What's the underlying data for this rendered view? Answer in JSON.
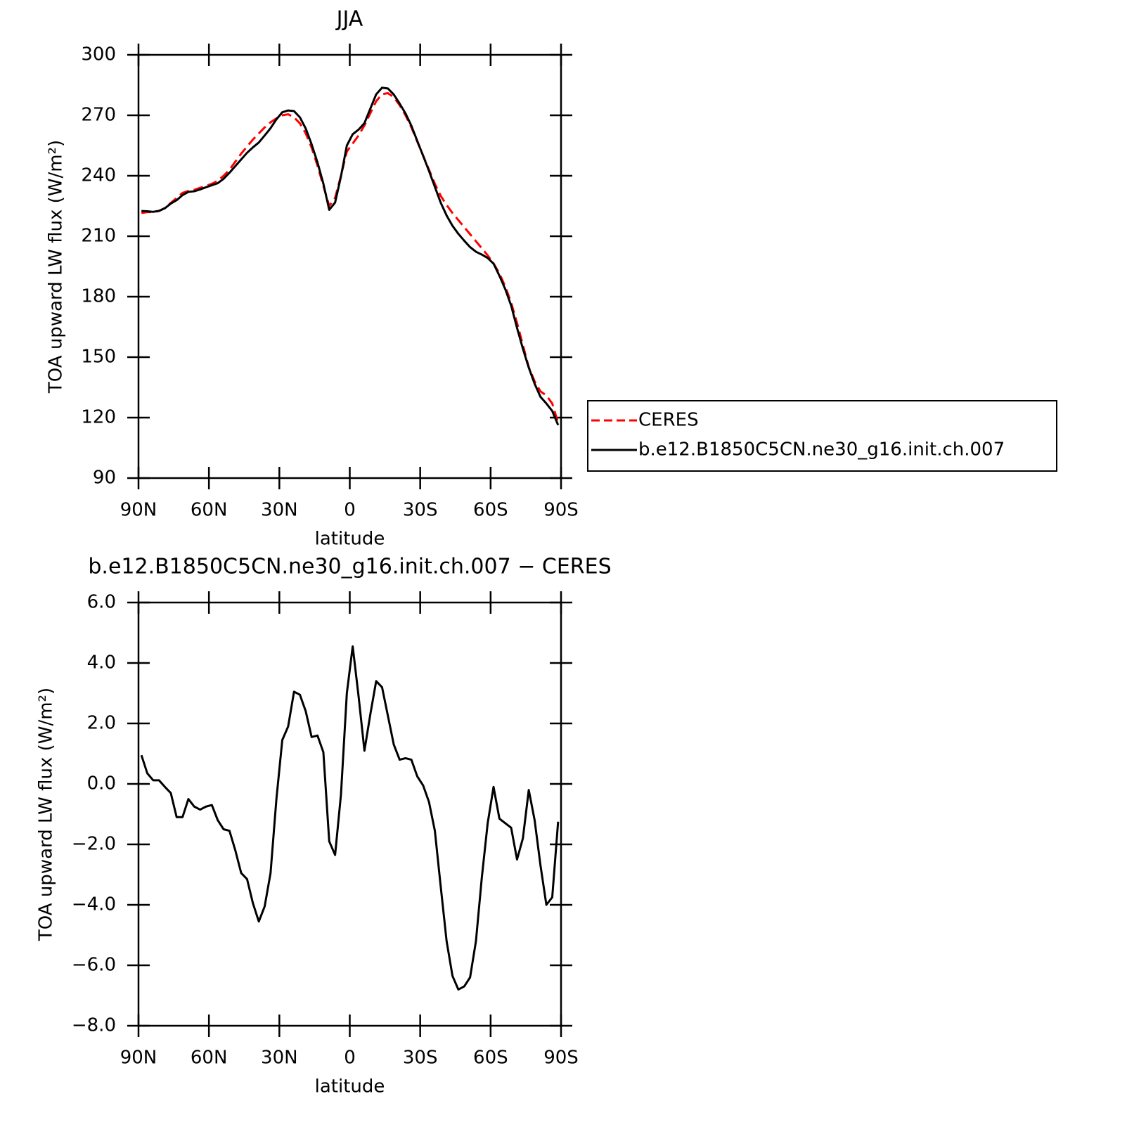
{
  "chart_data": [
    {
      "type": "line",
      "title": "JJA",
      "xlabel": "latitude",
      "ylabel": "TOA upward LW flux (W/m²)",
      "x": [
        88.75,
        86.25,
        83.75,
        81.25,
        78.75,
        76.25,
        73.75,
        71.25,
        68.75,
        66.25,
        63.75,
        61.25,
        58.75,
        56.25,
        53.75,
        51.25,
        48.75,
        46.25,
        43.75,
        41.25,
        38.75,
        36.25,
        33.75,
        31.25,
        28.75,
        26.25,
        23.75,
        21.25,
        18.75,
        16.25,
        13.75,
        11.25,
        8.75,
        6.25,
        3.75,
        1.25,
        -1.25,
        -3.75,
        -6.25,
        -8.75,
        -11.25,
        -13.75,
        -16.25,
        -18.75,
        -21.25,
        -23.75,
        -26.25,
        -28.75,
        -31.25,
        -33.75,
        -36.25,
        -38.75,
        -41.25,
        -43.75,
        -46.25,
        -48.75,
        -51.25,
        -53.75,
        -56.25,
        -58.75,
        -61.25,
        -63.75,
        -66.25,
        -68.75,
        -71.25,
        -73.75,
        -76.25,
        -78.75,
        -81.25,
        -83.75,
        -86.25,
        -88.75
      ],
      "series": [
        {
          "name": "CERES",
          "color": "#ff0000",
          "dashed": true,
          "values": [
            221.5,
            222,
            222,
            222.5,
            224,
            226.5,
            229,
            231.5,
            232.5,
            233,
            234,
            235,
            236,
            237.5,
            240,
            243,
            247,
            251,
            254.5,
            258,
            261,
            264,
            266.5,
            268.5,
            270,
            270.5,
            269,
            266,
            261,
            254,
            245,
            235,
            225,
            229,
            240,
            252,
            256,
            260,
            265,
            271,
            277,
            280.5,
            281,
            279,
            275,
            270,
            264,
            257,
            250,
            243,
            236,
            230,
            225.5,
            221.5,
            218,
            214.5,
            211,
            207.5,
            204,
            200.5,
            196.5,
            191.5,
            185,
            177,
            167,
            156,
            145,
            138,
            133,
            131,
            127,
            117.5
          ]
        },
        {
          "name": "b.e12.B1850C5CN.ne30_g16.init.ch.007",
          "color": "#000000",
          "dashed": false,
          "values": [
            222.5,
            222.4,
            222.1,
            222.6,
            223.9,
            226.2,
            227.9,
            230.4,
            232,
            232.3,
            233.2,
            234.3,
            235.3,
            236.3,
            238.5,
            241.5,
            244.8,
            248.1,
            251.4,
            254.1,
            256.5,
            260,
            263.6,
            268,
            271.5,
            272.4,
            272.1,
            269,
            263.4,
            255.6,
            246.6,
            236.1,
            223.1,
            226.7,
            239.7,
            255,
            260.6,
            262.9,
            266.1,
            273.3,
            280.4,
            283.7,
            283.3,
            280.3,
            275.8,
            270.9,
            264.8,
            257.3,
            249.9,
            242.4,
            234.5,
            226.6,
            220.3,
            215.2,
            211.2,
            207.8,
            204.6,
            202.3,
            200.9,
            199.2,
            196.4,
            190.4,
            183.7,
            175.6,
            164.5,
            154.2,
            144.8,
            136.8,
            130.3,
            127,
            123.3,
            116.3
          ]
        }
      ],
      "xlim": [
        90,
        -90
      ],
      "xticks": [
        {
          "value": 90,
          "label": "90N"
        },
        {
          "value": 60,
          "label": "60N"
        },
        {
          "value": 30,
          "label": "30N"
        },
        0,
        {
          "value": -30,
          "label": "30S"
        },
        {
          "value": -60,
          "label": "60S"
        },
        {
          "value": -90,
          "label": "90S"
        }
      ],
      "ylim": [
        90,
        300
      ],
      "yticks": [
        90,
        120,
        150,
        180,
        210,
        240,
        270,
        300
      ],
      "legend": "outside-right"
    },
    {
      "type": "line",
      "title": "b.e12.B1850C5CN.ne30_g16.init.ch.007 − CERES",
      "xlabel": "latitude",
      "ylabel": "TOA upward LW flux (W/m²)",
      "x": [
        88.75,
        86.25,
        83.75,
        81.25,
        78.75,
        76.25,
        73.75,
        71.25,
        68.75,
        66.25,
        63.75,
        61.25,
        58.75,
        56.25,
        53.75,
        51.25,
        48.75,
        46.25,
        43.75,
        41.25,
        38.75,
        36.25,
        33.75,
        31.25,
        28.75,
        26.25,
        23.75,
        21.25,
        18.75,
        16.25,
        13.75,
        11.25,
        8.75,
        6.25,
        3.75,
        1.25,
        -1.25,
        -3.75,
        -6.25,
        -8.75,
        -11.25,
        -13.75,
        -16.25,
        -18.75,
        -21.25,
        -23.75,
        -26.25,
        -28.75,
        -31.25,
        -33.75,
        -36.25,
        -38.75,
        -41.25,
        -43.75,
        -46.25,
        -48.75,
        -51.25,
        -53.75,
        -56.25,
        -58.75,
        -61.25,
        -63.75,
        -66.25,
        -68.75,
        -71.25,
        -73.75,
        -76.25,
        -78.75,
        -81.25,
        -83.75,
        -86.25,
        -88.75
      ],
      "series": [
        {
          "color": "#000000",
          "dashed": false,
          "values": [
            0.95,
            0.35,
            0.12,
            0.12,
            -0.1,
            -0.3,
            -1.1,
            -1.1,
            -0.5,
            -0.75,
            -0.85,
            -0.75,
            -0.7,
            -1.2,
            -1.5,
            -1.55,
            -2.2,
            -2.95,
            -3.15,
            -3.95,
            -4.55,
            -4.05,
            -2.95,
            -0.5,
            1.45,
            1.9,
            3.05,
            2.95,
            2.4,
            1.55,
            1.6,
            1.05,
            -1.9,
            -2.35,
            -0.35,
            3.0,
            4.55,
            2.9,
            1.1,
            2.3,
            3.4,
            3.2,
            2.25,
            1.3,
            0.8,
            0.85,
            0.8,
            0.25,
            -0.05,
            -0.6,
            -1.55,
            -3.4,
            -5.2,
            -6.35,
            -6.8,
            -6.7,
            -6.4,
            -5.2,
            -3.1,
            -1.3,
            -0.1,
            -1.15,
            -1.3,
            -1.45,
            -2.5,
            -1.8,
            -0.2,
            -1.2,
            -2.7,
            -4.0,
            -3.75,
            -1.25
          ]
        }
      ],
      "xlim": [
        90,
        -90
      ],
      "xticks": [
        {
          "value": 90,
          "label": "90N"
        },
        {
          "value": 60,
          "label": "60N"
        },
        {
          "value": 30,
          "label": "30N"
        },
        0,
        {
          "value": -30,
          "label": "30S"
        },
        {
          "value": -60,
          "label": "60S"
        },
        {
          "value": -90,
          "label": "90S"
        }
      ],
      "ylim": [
        -8,
        6
      ],
      "yticks": [
        {
          "value": -8,
          "label": "−8.0"
        },
        {
          "value": -6,
          "label": "−6.0"
        },
        {
          "value": -4,
          "label": "−4.0"
        },
        {
          "value": -2,
          "label": "−2.0"
        },
        {
          "value": 0,
          "label": "0.0"
        },
        {
          "value": 2,
          "label": "2.0"
        },
        {
          "value": 4,
          "label": "4.0"
        },
        {
          "value": 6,
          "label": "6.0"
        }
      ]
    }
  ]
}
